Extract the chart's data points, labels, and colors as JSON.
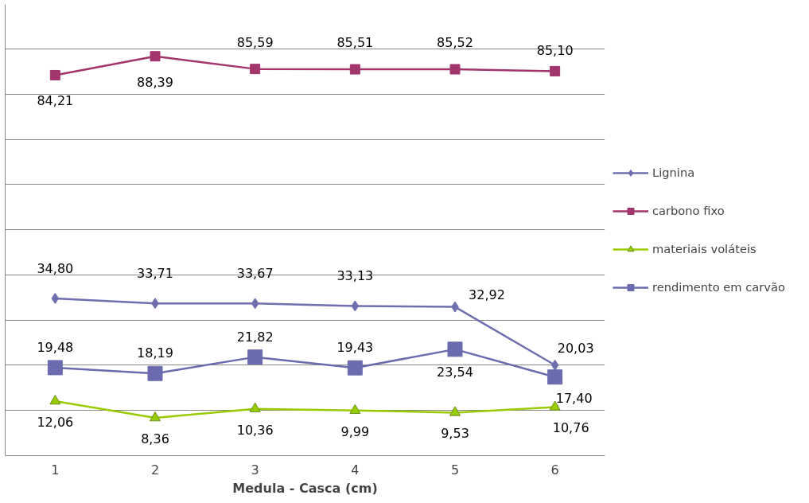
{
  "chart_data": {
    "type": "line",
    "xlabel": "Medula - Casca (cm)",
    "categories": [
      "1",
      "2",
      "3",
      "4",
      "5",
      "6"
    ],
    "tick_labels": "x",
    "grid": "y",
    "legend": "right",
    "series": [
      {
        "name": "Lignina",
        "color": "#6f6fb0",
        "marker": "diamond",
        "values": [
          34.8,
          33.71,
          33.67,
          33.13,
          32.92,
          20.03
        ],
        "value_labels": [
          "34,80",
          "33,71",
          "33,67",
          "33,13",
          "32,92",
          "20,03"
        ]
      },
      {
        "name": "carbono fixo",
        "color": "#a3356d",
        "marker": "square",
        "values": [
          84.21,
          88.39,
          85.59,
          85.51,
          85.52,
          85.1
        ],
        "value_labels": [
          "84,21",
          "88,39",
          "85,59",
          "85,51",
          "85,52",
          "85,10"
        ]
      },
      {
        "name": "materiais voláteis",
        "color": "#99cc00",
        "marker": "triangle",
        "values": [
          12.06,
          8.36,
          10.36,
          9.99,
          9.53,
          10.76
        ],
        "value_labels": [
          "12,06",
          "8,36",
          "10,36",
          "9,99",
          "9,53",
          "10,76"
        ]
      },
      {
        "name": "rendimento em carvão",
        "color": "#6b6baf",
        "marker": "square",
        "values": [
          19.48,
          18.19,
          21.82,
          19.43,
          23.54,
          17.4
        ],
        "value_labels": [
          "19,48",
          "18,19",
          "21,82",
          "19,43",
          "23,54",
          "17,40"
        ]
      }
    ]
  }
}
